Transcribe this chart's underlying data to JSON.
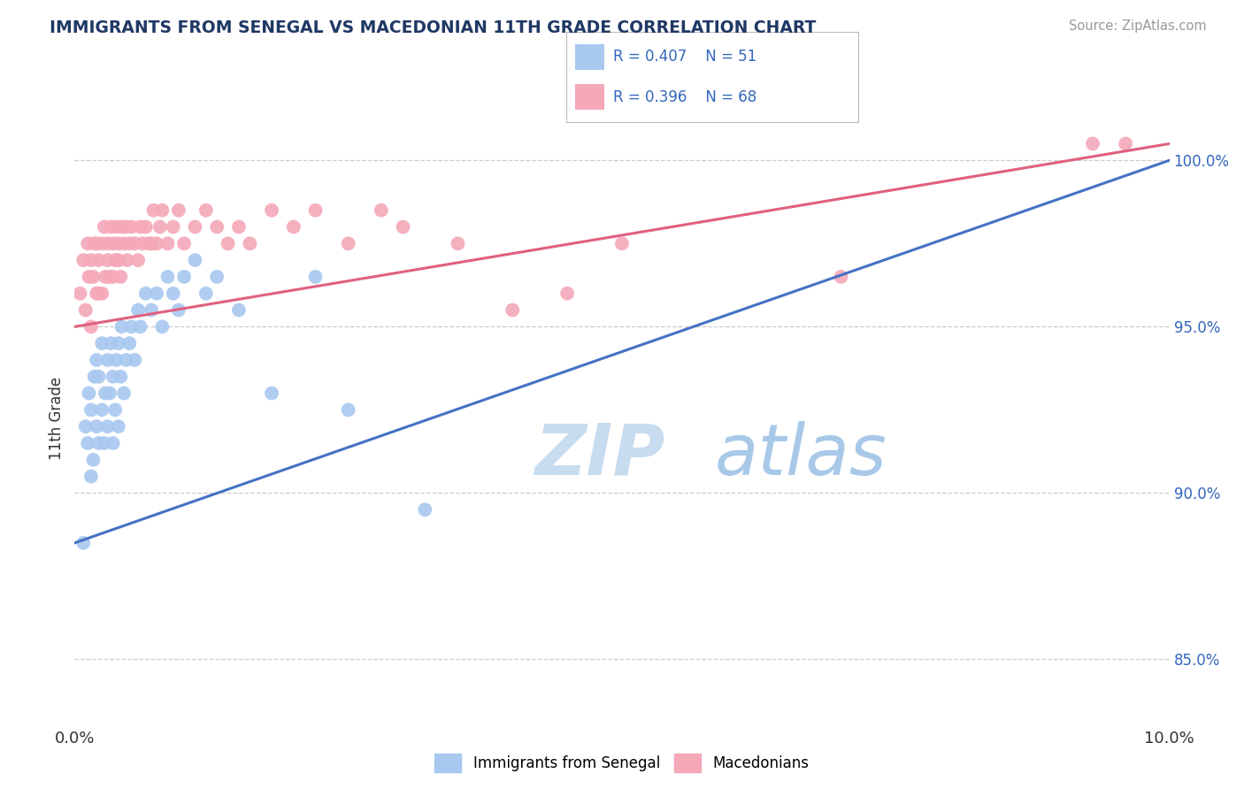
{
  "title": "IMMIGRANTS FROM SENEGAL VS MACEDONIAN 11TH GRADE CORRELATION CHART",
  "source_text": "Source: ZipAtlas.com",
  "ylabel": "11th Grade",
  "xlim": [
    0.0,
    10.0
  ],
  "ylim": [
    83.0,
    101.5
  ],
  "x_tick_positions": [
    0.0,
    2.0,
    4.0,
    6.0,
    8.0,
    10.0
  ],
  "x_tick_labels": [
    "0.0%",
    "",
    "",
    "",
    "",
    "10.0%"
  ],
  "y_ticks_right": [
    85.0,
    90.0,
    95.0,
    100.0
  ],
  "y_tick_labels_right": [
    "85.0%",
    "90.0%",
    "95.0%",
    "100.0%"
  ],
  "legend_label1": "Immigrants from Senegal",
  "legend_label2": "Macedonians",
  "blue_color": "#A8C8F0",
  "pink_color": "#F4A8B8",
  "blue_line_color": "#4472C4",
  "pink_line_color": "#E06080",
  "background_color": "#FFFFFF",
  "title_color": "#1F3864",
  "axis_label_color": "#333333",
  "right_axis_color": "#3366BB",
  "watermark_color": "#D8EAF8",
  "blue_scatter_x": [
    0.08,
    0.1,
    0.12,
    0.13,
    0.15,
    0.15,
    0.17,
    0.18,
    0.2,
    0.2,
    0.22,
    0.22,
    0.25,
    0.25,
    0.27,
    0.28,
    0.3,
    0.3,
    0.32,
    0.33,
    0.35,
    0.35,
    0.37,
    0.38,
    0.4,
    0.4,
    0.42,
    0.43,
    0.45,
    0.47,
    0.5,
    0.52,
    0.55,
    0.58,
    0.6,
    0.65,
    0.7,
    0.75,
    0.8,
    0.85,
    0.9,
    0.95,
    1.0,
    1.1,
    1.2,
    1.3,
    1.5,
    1.8,
    2.2,
    2.5,
    3.2
  ],
  "blue_scatter_y": [
    88.5,
    92.0,
    91.5,
    93.0,
    90.5,
    92.5,
    91.0,
    93.5,
    92.0,
    94.0,
    91.5,
    93.5,
    92.5,
    94.5,
    91.5,
    93.0,
    92.0,
    94.0,
    93.0,
    94.5,
    91.5,
    93.5,
    92.5,
    94.0,
    92.0,
    94.5,
    93.5,
    95.0,
    93.0,
    94.0,
    94.5,
    95.0,
    94.0,
    95.5,
    95.0,
    96.0,
    95.5,
    96.0,
    95.0,
    96.5,
    96.0,
    95.5,
    96.5,
    97.0,
    96.0,
    96.5,
    95.5,
    93.0,
    96.5,
    92.5,
    89.5
  ],
  "pink_scatter_x": [
    0.05,
    0.08,
    0.1,
    0.12,
    0.13,
    0.15,
    0.15,
    0.17,
    0.18,
    0.2,
    0.2,
    0.22,
    0.22,
    0.25,
    0.25,
    0.27,
    0.28,
    0.3,
    0.3,
    0.32,
    0.33,
    0.35,
    0.35,
    0.37,
    0.38,
    0.4,
    0.4,
    0.42,
    0.43,
    0.45,
    0.47,
    0.48,
    0.5,
    0.52,
    0.55,
    0.58,
    0.6,
    0.62,
    0.65,
    0.68,
    0.7,
    0.72,
    0.75,
    0.78,
    0.8,
    0.85,
    0.9,
    0.95,
    1.0,
    1.1,
    1.2,
    1.3,
    1.4,
    1.5,
    1.6,
    1.8,
    2.0,
    2.2,
    2.5,
    2.8,
    3.0,
    3.5,
    4.0,
    4.5,
    5.0,
    7.0,
    9.3,
    9.6
  ],
  "pink_scatter_y": [
    96.0,
    97.0,
    95.5,
    97.5,
    96.5,
    95.0,
    97.0,
    96.5,
    97.5,
    96.0,
    97.5,
    96.0,
    97.0,
    97.5,
    96.0,
    98.0,
    96.5,
    97.0,
    97.5,
    96.5,
    98.0,
    96.5,
    97.5,
    97.0,
    98.0,
    97.0,
    97.5,
    96.5,
    98.0,
    97.5,
    98.0,
    97.0,
    97.5,
    98.0,
    97.5,
    97.0,
    98.0,
    97.5,
    98.0,
    97.5,
    97.5,
    98.5,
    97.5,
    98.0,
    98.5,
    97.5,
    98.0,
    98.5,
    97.5,
    98.0,
    98.5,
    98.0,
    97.5,
    98.0,
    97.5,
    98.5,
    98.0,
    98.5,
    97.5,
    98.5,
    98.0,
    97.5,
    95.5,
    96.0,
    97.5,
    96.5,
    100.5,
    100.5
  ],
  "blue_line_x0": 0.0,
  "blue_line_y0": 88.5,
  "blue_line_x1": 10.0,
  "blue_line_y1": 100.0,
  "pink_line_x0": 0.0,
  "pink_line_y0": 95.0,
  "pink_line_x1": 10.0,
  "pink_line_y1": 100.5
}
